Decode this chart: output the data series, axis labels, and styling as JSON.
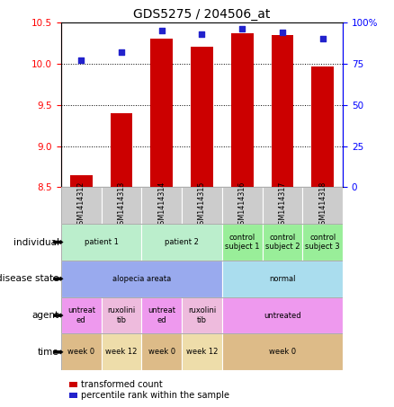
{
  "title": "GDS5275 / 204506_at",
  "samples": [
    "GSM1414312",
    "GSM1414313",
    "GSM1414314",
    "GSM1414315",
    "GSM1414316",
    "GSM1414317",
    "GSM1414318"
  ],
  "transformed_counts": [
    8.65,
    9.4,
    10.3,
    10.2,
    10.37,
    10.35,
    9.97
  ],
  "percentile_ranks": [
    77,
    82,
    95,
    93,
    96,
    94,
    90
  ],
  "ylim_left": [
    8.5,
    10.5
  ],
  "ylim_right": [
    0,
    100
  ],
  "yticks_left": [
    8.5,
    9.0,
    9.5,
    10.0,
    10.5
  ],
  "yticks_right": [
    0,
    25,
    50,
    75,
    100
  ],
  "ytick_labels_right": [
    "0",
    "25",
    "50",
    "75",
    "100%"
  ],
  "bar_color": "#cc0000",
  "dot_color": "#2222cc",
  "sample_bg_color": "#cccccc",
  "row_labels": [
    "individual",
    "disease state",
    "agent",
    "time"
  ],
  "individual_groups": [
    {
      "label": "patient 1",
      "span": [
        0,
        2
      ],
      "color": "#bbeecc"
    },
    {
      "label": "patient 2",
      "span": [
        2,
        4
      ],
      "color": "#bbeecc"
    },
    {
      "label": "control\nsubject 1",
      "span": [
        4,
        5
      ],
      "color": "#99ee99"
    },
    {
      "label": "control\nsubject 2",
      "span": [
        5,
        6
      ],
      "color": "#99ee99"
    },
    {
      "label": "control\nsubject 3",
      "span": [
        6,
        7
      ],
      "color": "#99ee99"
    }
  ],
  "disease_groups": [
    {
      "label": "alopecia areata",
      "span": [
        0,
        4
      ],
      "color": "#99aaee"
    },
    {
      "label": "normal",
      "span": [
        4,
        7
      ],
      "color": "#aaddee"
    }
  ],
  "agent_groups": [
    {
      "label": "untreat\ned",
      "span": [
        0,
        1
      ],
      "color": "#ee99ee"
    },
    {
      "label": "ruxolini\ntib",
      "span": [
        1,
        2
      ],
      "color": "#eebbdd"
    },
    {
      "label": "untreat\ned",
      "span": [
        2,
        3
      ],
      "color": "#ee99ee"
    },
    {
      "label": "ruxolini\ntib",
      "span": [
        3,
        4
      ],
      "color": "#eebbdd"
    },
    {
      "label": "untreated",
      "span": [
        4,
        7
      ],
      "color": "#ee99ee"
    }
  ],
  "time_groups": [
    {
      "label": "week 0",
      "span": [
        0,
        1
      ],
      "color": "#ddbb88"
    },
    {
      "label": "week 12",
      "span": [
        1,
        2
      ],
      "color": "#eeddaa"
    },
    {
      "label": "week 0",
      "span": [
        2,
        3
      ],
      "color": "#ddbb88"
    },
    {
      "label": "week 12",
      "span": [
        3,
        4
      ],
      "color": "#eeddaa"
    },
    {
      "label": "week 0",
      "span": [
        4,
        7
      ],
      "color": "#ddbb88"
    }
  ],
  "legend_items": [
    {
      "color": "#cc0000",
      "label": "transformed count"
    },
    {
      "color": "#2222cc",
      "label": "percentile rank within the sample"
    }
  ]
}
